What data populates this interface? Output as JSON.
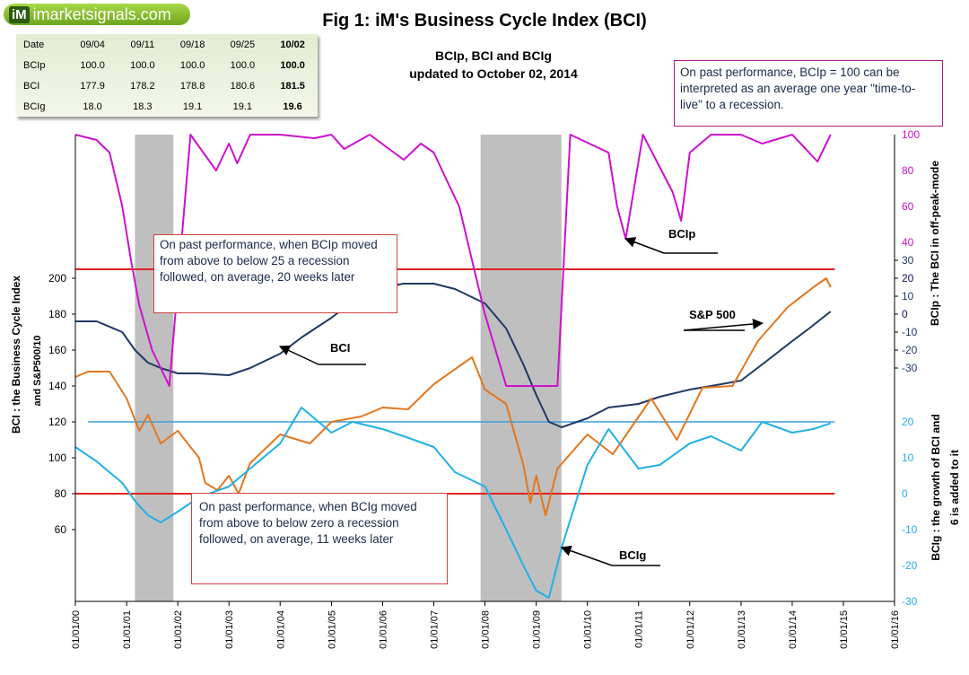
{
  "logo": {
    "mark": "iM",
    "name": "imarketsignals.com"
  },
  "title": "Fig 1:  iM's Business Cycle Index (BCI)",
  "subtitle_line1": "BCIp, BCI and BCIg",
  "subtitle_line2": "updated to October 02, 2014",
  "table": {
    "row_headers": [
      "Date",
      "BCIp",
      "BCI",
      "BCIg"
    ],
    "columns": [
      [
        "09/04",
        "100.0",
        "177.9",
        "18.0"
      ],
      [
        "09/11",
        "100.0",
        "178.2",
        "18.3"
      ],
      [
        "09/18",
        "100.0",
        "178.8",
        "19.1"
      ],
      [
        "09/25",
        "100.0",
        "180.6",
        "19.1"
      ],
      [
        "10/02",
        "100.0",
        "181.5",
        "19.6"
      ]
    ]
  },
  "notes": {
    "top_right": "On past performance, BCIp = 100  can be interpreted as an average one year \"time-to-live\" to a recession.",
    "bcip": "On past performance,  when BCIp moved from above to below 25 a recession followed, on average, 20 weeks later",
    "bcig": "On past performance,  when BCIg moved from above to below zero a recession followed, on average, 11 weeks later"
  },
  "y_left_label_1": "BCI : the Business  Cycle  Index",
  "y_left_label_2": "and  S&P500/10",
  "y_right_label_bcip": "BCIp :  The BCI in off-peak-mode",
  "y_right_label_bcig_1": "BCIg :  the growth of BCI and",
  "y_right_label_bcig_2": "6 is added to it",
  "chart_data": {
    "type": "line",
    "x_ticks": [
      "01/01/00",
      "01/01/01",
      "01/01/02",
      "01/01/03",
      "01/01/04",
      "01/01/05",
      "01/01/06",
      "01/01/07",
      "01/01/08",
      "01/01/09",
      "01/01/10",
      "01/01/11",
      "01/01/12",
      "01/01/13",
      "01/01/14",
      "01/01/15",
      "01/01/16"
    ],
    "y_left_ticks": [
      60,
      80,
      100,
      120,
      140,
      160,
      180,
      200
    ],
    "y_right_bcip_ticks": [
      0,
      20,
      40,
      60,
      80,
      100
    ],
    "y_right_shared_ticks": [
      -30,
      -20,
      -10,
      0,
      10,
      20,
      30
    ],
    "y_right_bcig_ticks": [
      -30,
      -20,
      -10,
      0,
      10,
      20
    ],
    "recessions": [
      [
        "2001-03-01",
        "2001-11-30"
      ],
      [
        "2007-12-01",
        "2009-06-30"
      ]
    ],
    "bcip_threshold_line": 25,
    "bcig_zero_line": 0,
    "bci_marker_line": 120,
    "series": [
      {
        "name": "BCI",
        "color": "#1f3864",
        "axis": "left",
        "points": [
          [
            "2000-01-01",
            176
          ],
          [
            "2000-06-01",
            176
          ],
          [
            "2000-12-01",
            170
          ],
          [
            "2001-03-01",
            160
          ],
          [
            "2001-06-01",
            153
          ],
          [
            "2001-09-01",
            150
          ],
          [
            "2002-01-01",
            147
          ],
          [
            "2002-06-01",
            147
          ],
          [
            "2003-01-01",
            146
          ],
          [
            "2003-06-01",
            150
          ],
          [
            "2004-01-01",
            158
          ],
          [
            "2004-06-01",
            167
          ],
          [
            "2005-01-01",
            178
          ],
          [
            "2005-06-01",
            187
          ],
          [
            "2006-01-01",
            195
          ],
          [
            "2006-06-01",
            197
          ],
          [
            "2007-01-01",
            197
          ],
          [
            "2007-06-01",
            194
          ],
          [
            "2008-01-01",
            186
          ],
          [
            "2008-06-01",
            172
          ],
          [
            "2008-10-01",
            152
          ],
          [
            "2009-01-01",
            135
          ],
          [
            "2009-04-01",
            120
          ],
          [
            "2009-07-01",
            117
          ],
          [
            "2010-01-01",
            122
          ],
          [
            "2010-06-01",
            128
          ],
          [
            "2011-01-01",
            130
          ],
          [
            "2011-06-01",
            134
          ],
          [
            "2012-01-01",
            138
          ],
          [
            "2012-06-01",
            140
          ],
          [
            "2013-01-01",
            143
          ],
          [
            "2013-06-01",
            152
          ],
          [
            "2014-01-01",
            165
          ],
          [
            "2014-05-01",
            172
          ],
          [
            "2014-10-02",
            181.5
          ]
        ]
      },
      {
        "name": "S&P 500",
        "color": "#e3761e",
        "axis": "left",
        "points": [
          [
            "2000-01-01",
            145
          ],
          [
            "2000-04-01",
            148
          ],
          [
            "2000-09-01",
            148
          ],
          [
            "2001-01-01",
            133
          ],
          [
            "2001-04-01",
            115
          ],
          [
            "2001-06-01",
            124
          ],
          [
            "2001-09-01",
            108
          ],
          [
            "2002-01-01",
            115
          ],
          [
            "2002-06-01",
            100
          ],
          [
            "2002-07-15",
            86
          ],
          [
            "2002-10-10",
            82
          ],
          [
            "2003-01-01",
            90
          ],
          [
            "2003-03-10",
            80
          ],
          [
            "2003-06-01",
            97
          ],
          [
            "2004-01-01",
            113
          ],
          [
            "2004-08-01",
            108
          ],
          [
            "2005-01-01",
            120
          ],
          [
            "2005-08-01",
            123
          ],
          [
            "2006-01-01",
            128
          ],
          [
            "2006-07-01",
            127
          ],
          [
            "2007-01-01",
            141
          ],
          [
            "2007-10-01",
            156
          ],
          [
            "2008-01-01",
            138
          ],
          [
            "2008-06-01",
            130
          ],
          [
            "2008-10-01",
            96
          ],
          [
            "2008-11-20",
            75
          ],
          [
            "2009-01-01",
            90
          ],
          [
            "2009-03-09",
            68
          ],
          [
            "2009-06-01",
            94
          ],
          [
            "2010-01-01",
            113
          ],
          [
            "2010-07-01",
            102
          ],
          [
            "2011-04-01",
            133
          ],
          [
            "2011-10-01",
            110
          ],
          [
            "2012-04-01",
            139
          ],
          [
            "2012-11-01",
            140
          ],
          [
            "2013-05-01",
            165
          ],
          [
            "2013-12-01",
            184
          ],
          [
            "2014-06-01",
            195
          ],
          [
            "2014-09-01",
            200
          ],
          [
            "2014-10-02",
            195
          ]
        ]
      },
      {
        "name": "BCIp",
        "color": "#cc11cc",
        "axis": "right_top",
        "points": [
          [
            "2000-01-01",
            100
          ],
          [
            "2000-06-01",
            97
          ],
          [
            "2000-09-01",
            90
          ],
          [
            "2000-12-01",
            60
          ],
          [
            "2001-02-01",
            30
          ],
          [
            "2001-04-01",
            5
          ],
          [
            "2001-07-01",
            -20
          ],
          [
            "2001-11-01",
            -40
          ],
          [
            "2002-04-01",
            100
          ],
          [
            "2002-10-01",
            80
          ],
          [
            "2003-01-01",
            95
          ],
          [
            "2003-03-01",
            84
          ],
          [
            "2003-06-01",
            100
          ],
          [
            "2004-01-01",
            100
          ],
          [
            "2004-09-01",
            98
          ],
          [
            "2005-01-01",
            100
          ],
          [
            "2005-04-01",
            92
          ],
          [
            "2005-10-01",
            100
          ],
          [
            "2006-06-01",
            86
          ],
          [
            "2006-10-01",
            95
          ],
          [
            "2007-01-01",
            90
          ],
          [
            "2007-04-01",
            75
          ],
          [
            "2007-07-01",
            60
          ],
          [
            "2007-10-01",
            30
          ],
          [
            "2008-01-01",
            0
          ],
          [
            "2008-06-01",
            -40
          ],
          [
            "2009-06-01",
            -40
          ],
          [
            "2009-09-01",
            100
          ],
          [
            "2010-06-01",
            90
          ],
          [
            "2010-08-01",
            60
          ],
          [
            "2010-10-01",
            42
          ],
          [
            "2011-02-01",
            100
          ],
          [
            "2011-09-01",
            68
          ],
          [
            "2011-11-01",
            52
          ],
          [
            "2012-01-01",
            90
          ],
          [
            "2012-06-01",
            100
          ],
          [
            "2013-01-01",
            100
          ],
          [
            "2013-06-01",
            95
          ],
          [
            "2014-01-01",
            100
          ],
          [
            "2014-07-01",
            85
          ],
          [
            "2014-10-02",
            100
          ]
        ]
      },
      {
        "name": "BCIg",
        "color": "#22b0e6",
        "axis": "right_bottom",
        "points": [
          [
            "2000-01-01",
            13
          ],
          [
            "2000-06-01",
            9
          ],
          [
            "2000-12-01",
            3
          ],
          [
            "2001-03-01",
            -2
          ],
          [
            "2001-06-01",
            -6
          ],
          [
            "2001-09-01",
            -8
          ],
          [
            "2002-01-01",
            -5
          ],
          [
            "2002-06-01",
            -1
          ],
          [
            "2003-01-01",
            2
          ],
          [
            "2003-06-01",
            7
          ],
          [
            "2004-01-01",
            14
          ],
          [
            "2004-06-01",
            24
          ],
          [
            "2005-01-01",
            17
          ],
          [
            "2005-06-01",
            20
          ],
          [
            "2006-01-01",
            18
          ],
          [
            "2006-06-01",
            16
          ],
          [
            "2007-01-01",
            13
          ],
          [
            "2007-06-01",
            6
          ],
          [
            "2008-01-01",
            2
          ],
          [
            "2008-06-01",
            -10
          ],
          [
            "2008-10-01",
            -20
          ],
          [
            "2009-01-01",
            -27
          ],
          [
            "2009-04-01",
            -29
          ],
          [
            "2009-07-01",
            -15
          ],
          [
            "2010-01-01",
            8
          ],
          [
            "2010-06-01",
            18
          ],
          [
            "2011-01-01",
            7
          ],
          [
            "2011-06-01",
            8
          ],
          [
            "2012-01-01",
            14
          ],
          [
            "2012-06-01",
            16
          ],
          [
            "2013-01-01",
            12
          ],
          [
            "2013-06-01",
            20
          ],
          [
            "2014-01-01",
            17
          ],
          [
            "2014-06-01",
            18
          ],
          [
            "2014-10-02",
            19.6
          ]
        ]
      }
    ],
    "annotations": [
      {
        "text": "BCIp",
        "target_date": "2010-10-01",
        "target_axis": "right_top",
        "target_value": 42
      },
      {
        "text": "BCI",
        "target_date": "2004-01-01",
        "target_axis": "left",
        "target_value": 162
      },
      {
        "text": "S&P 500",
        "target_date": "2013-06-01",
        "target_axis": "left",
        "target_value": 175
      },
      {
        "text": "BCIg",
        "target_date": "2009-07-01",
        "target_axis": "right_bottom",
        "target_value": -15
      }
    ]
  }
}
